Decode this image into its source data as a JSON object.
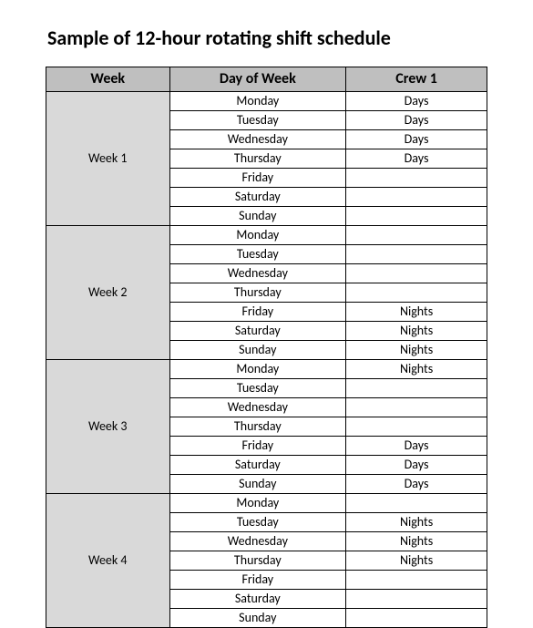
{
  "title": "Sample of 12-hour rotating shift schedule",
  "table": {
    "columns": [
      "Week",
      "Day of Week",
      "Crew 1"
    ],
    "header_bg": "#bfbfbf",
    "week_cell_bg": "#d9d9d9",
    "border_color": "#000000",
    "font_family": "Calibri",
    "title_fontsize": 22,
    "header_fontsize": 16,
    "cell_fontsize": 14,
    "weeks": [
      {
        "label": "Week 1",
        "rows": [
          {
            "day": "Monday",
            "crew": "Days"
          },
          {
            "day": "Tuesday",
            "crew": "Days"
          },
          {
            "day": "Wednesday",
            "crew": "Days"
          },
          {
            "day": "Thursday",
            "crew": "Days"
          },
          {
            "day": "Friday",
            "crew": ""
          },
          {
            "day": "Saturday",
            "crew": ""
          },
          {
            "day": "Sunday",
            "crew": ""
          }
        ]
      },
      {
        "label": "Week 2",
        "rows": [
          {
            "day": "Monday",
            "crew": ""
          },
          {
            "day": "Tuesday",
            "crew": ""
          },
          {
            "day": "Wednesday",
            "crew": ""
          },
          {
            "day": "Thursday",
            "crew": ""
          },
          {
            "day": "Friday",
            "crew": "Nights"
          },
          {
            "day": "Saturday",
            "crew": "Nights"
          },
          {
            "day": "Sunday",
            "crew": "Nights"
          }
        ]
      },
      {
        "label": "Week 3",
        "rows": [
          {
            "day": "Monday",
            "crew": "Nights"
          },
          {
            "day": "Tuesday",
            "crew": ""
          },
          {
            "day": "Wednesday",
            "crew": ""
          },
          {
            "day": "Thursday",
            "crew": ""
          },
          {
            "day": "Friday",
            "crew": "Days"
          },
          {
            "day": "Saturday",
            "crew": "Days"
          },
          {
            "day": "Sunday",
            "crew": "Days"
          }
        ]
      },
      {
        "label": "Week 4",
        "rows": [
          {
            "day": "Monday",
            "crew": ""
          },
          {
            "day": "Tuesday",
            "crew": "Nights"
          },
          {
            "day": "Wednesday",
            "crew": "Nights"
          },
          {
            "day": "Thursday",
            "crew": "Nights"
          },
          {
            "day": "Friday",
            "crew": ""
          },
          {
            "day": "Saturday",
            "crew": ""
          },
          {
            "day": "Sunday",
            "crew": ""
          }
        ]
      }
    ]
  }
}
